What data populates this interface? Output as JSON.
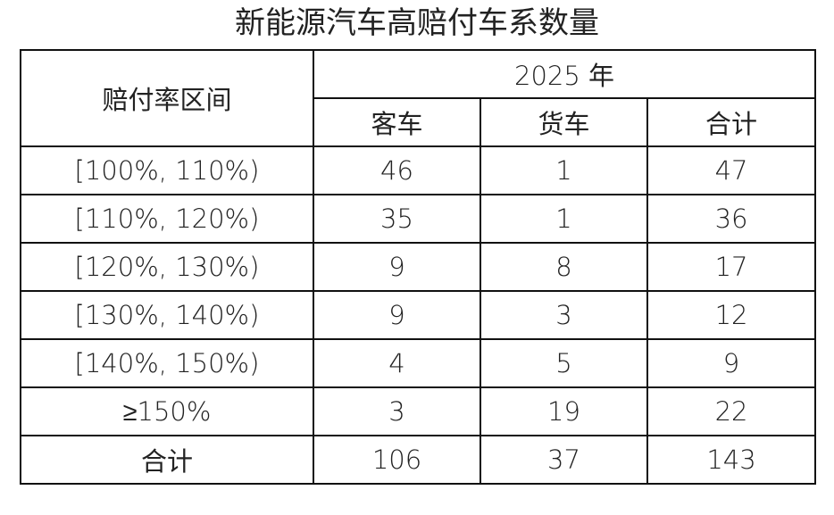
{
  "title": "新能源汽车高赔付车系数量",
  "header": {
    "row_label": "赔付率区间",
    "year": "2025 年",
    "columns": [
      "客车",
      "货车",
      "合计"
    ]
  },
  "rows": [
    {
      "label": "[100%, 110%)",
      "values": [
        "46",
        "1",
        "47"
      ]
    },
    {
      "label": "[110%, 120%)",
      "values": [
        "35",
        "1",
        "36"
      ]
    },
    {
      "label": "[120%, 130%)",
      "values": [
        "9",
        "8",
        "17"
      ]
    },
    {
      "label": "[130%, 140%)",
      "values": [
        "9",
        "3",
        "12"
      ]
    },
    {
      "label": "[140%, 150%)",
      "values": [
        "4",
        "5",
        "9"
      ]
    },
    {
      "label": "≥150%",
      "values": [
        "3",
        "19",
        "22"
      ]
    },
    {
      "label": "合计",
      "values": [
        "106",
        "37",
        "143"
      ]
    }
  ]
}
